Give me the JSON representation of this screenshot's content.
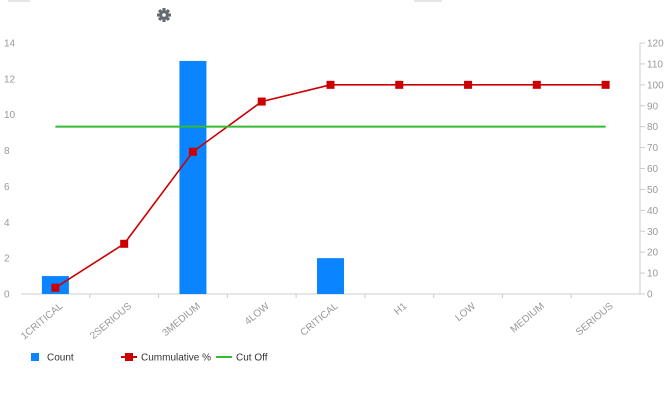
{
  "toolbar": {
    "settings_icon": "gear-icon"
  },
  "chart_data": {
    "type": "bar",
    "categories": [
      "1CRITICAL",
      "2SERIOUS",
      "3MEDIUM",
      "4LOW",
      "CRITICAL",
      "H1",
      "LOW",
      "MEDIUM",
      "SERIOUS"
    ],
    "series": [
      {
        "name": "Count",
        "type": "bar",
        "axis": "left",
        "color": "#0a84ff",
        "values": [
          1,
          0,
          13,
          0,
          2,
          0,
          0,
          0,
          0
        ]
      },
      {
        "name": "Cummulative %",
        "type": "line",
        "axis": "right",
        "color": "#cc0000",
        "marker": "square",
        "values": [
          3,
          24,
          68,
          92,
          100,
          100,
          100,
          100,
          100
        ]
      },
      {
        "name": "Cut Off",
        "type": "line",
        "axis": "right",
        "color": "#33bb33",
        "values": [
          80,
          80,
          80,
          80,
          80,
          80,
          80,
          80,
          80
        ]
      }
    ],
    "ylim_left": [
      0,
      14
    ],
    "ylim_right": [
      0,
      120
    ],
    "yticks_left": [
      0,
      2,
      4,
      6,
      8,
      10,
      12,
      14
    ],
    "yticks_right": [
      0,
      10,
      20,
      30,
      40,
      50,
      60,
      70,
      80,
      90,
      100,
      110,
      120
    ],
    "grid": false,
    "legend_position": "bottom-left"
  }
}
